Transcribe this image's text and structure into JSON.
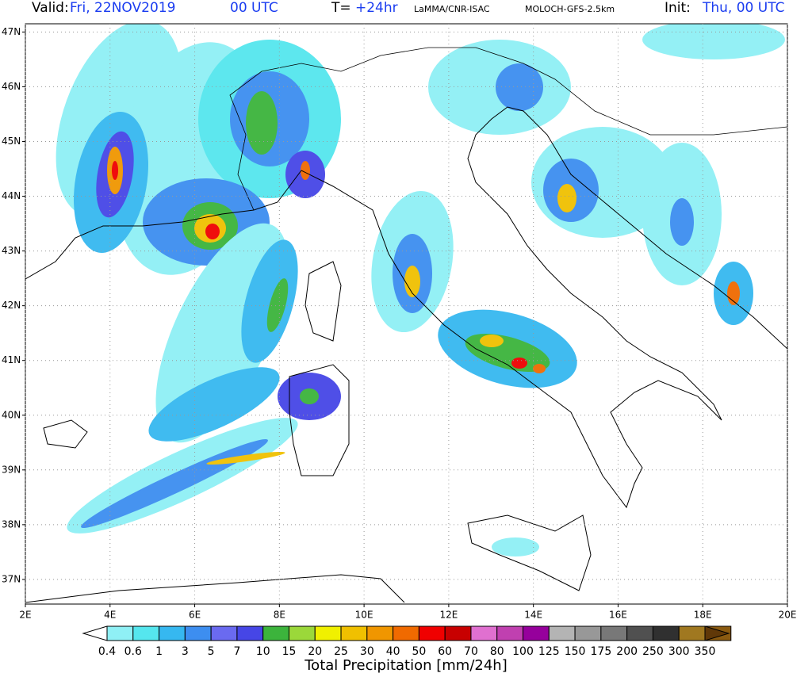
{
  "header": {
    "valid_label": "Valid:",
    "valid_date": "Fri, 22NOV2019",
    "valid_time": "00 UTC",
    "step_label": "T=",
    "step_value": "+24hr",
    "source": "LaMMA/CNR-ISAC",
    "model": "MOLOCH-GFS-2.5km",
    "init_label": "Init:",
    "init_value": "Thu, 00 UTC"
  },
  "map": {
    "lon_range": [
      2,
      20
    ],
    "lat_range": [
      36.55,
      47.15
    ],
    "lat_ticks": [
      {
        "value": 47,
        "label": "47N"
      },
      {
        "value": 46,
        "label": "46N"
      },
      {
        "value": 45,
        "label": "45N"
      },
      {
        "value": 44,
        "label": "44N"
      },
      {
        "value": 43,
        "label": "43N"
      },
      {
        "value": 42,
        "label": "42N"
      },
      {
        "value": 41,
        "label": "41N"
      },
      {
        "value": 40,
        "label": "40N"
      },
      {
        "value": 39,
        "label": "39N"
      },
      {
        "value": 38,
        "label": "38N"
      },
      {
        "value": 37,
        "label": "37N"
      }
    ],
    "lon_ticks": [
      {
        "value": 2,
        "label": "2E"
      },
      {
        "value": 4,
        "label": "4E"
      },
      {
        "value": 6,
        "label": "6E"
      },
      {
        "value": 8,
        "label": "8E"
      },
      {
        "value": 10,
        "label": "10E"
      },
      {
        "value": 12,
        "label": "12E"
      },
      {
        "value": 14,
        "label": "14E"
      },
      {
        "value": 16,
        "label": "16E"
      },
      {
        "value": 18,
        "label": "18E"
      },
      {
        "value": 20,
        "label": "20E"
      }
    ],
    "grid": true
  },
  "colorbar": {
    "title": "Total Precipitation [mm/24h]",
    "levels": [
      0.4,
      0.6,
      1,
      3,
      5,
      7,
      10,
      15,
      20,
      25,
      30,
      40,
      50,
      60,
      70,
      80,
      100,
      125,
      150,
      175,
      200,
      250,
      300,
      350
    ],
    "colors": [
      "#8ff0f5",
      "#55e6ee",
      "#36b8f0",
      "#3d8ef0",
      "#6a6af0",
      "#4646e6",
      "#3cb43c",
      "#9bd83a",
      "#f0f000",
      "#f0c000",
      "#f09600",
      "#f06a00",
      "#f00000",
      "#c80000",
      "#e070d0",
      "#c040b0",
      "#96009c",
      "#b4b4b4",
      "#989898",
      "#787878",
      "#505050",
      "#303030",
      "#a07820",
      "#8a5a10"
    ],
    "under_color": "#ffffff",
    "over_color": "#603808"
  }
}
